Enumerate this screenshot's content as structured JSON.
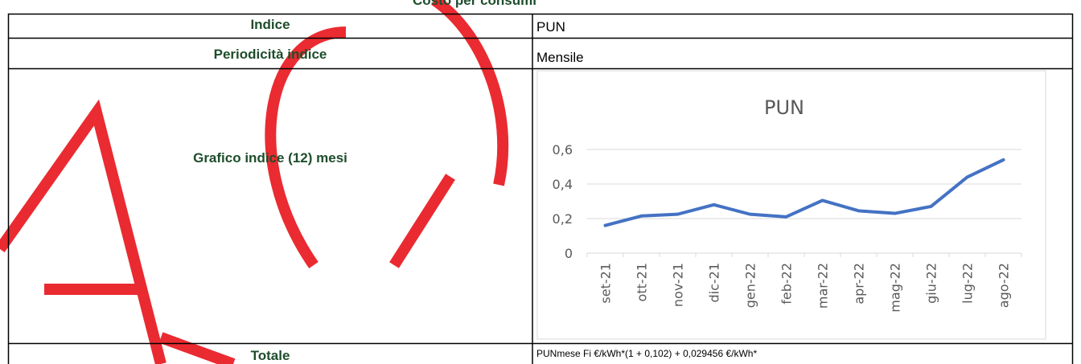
{
  "header": {
    "title": "Costo per consumi"
  },
  "table": {
    "rows": [
      [
        "Indice",
        "PUN"
      ],
      [
        "Periodicità indice",
        "Mensile"
      ],
      [
        "Grafico indice (12) mesi"
      ],
      [
        "Totale",
        "PUNmese Fi €/kWh*(1 + 0,102) + 0,029456 €/kWh*"
      ]
    ]
  },
  "chart_data": {
    "type": "line",
    "title": "PUN",
    "categories": [
      "set-21",
      "ott-21",
      "nov-21",
      "dic-21",
      "gen-22",
      "feb-22",
      "mar-22",
      "apr-22",
      "mag-22",
      "giu-22",
      "lug-22",
      "ago-22"
    ],
    "series": [
      {
        "name": "PUN",
        "color": "#4472c4",
        "values": [
          0.16,
          0.215,
          0.225,
          0.28,
          0.225,
          0.21,
          0.305,
          0.245,
          0.23,
          0.27,
          0.44,
          0.54
        ]
      }
    ],
    "ylim": [
      0,
      0.6
    ],
    "yticks": [
      0,
      {
        "value": 0.2,
        "label": "0,2"
      },
      {
        "value": 0.4,
        "label": "0,4"
      },
      {
        "value": 0.6,
        "label": "0,6"
      }
    ],
    "grid": true
  }
}
